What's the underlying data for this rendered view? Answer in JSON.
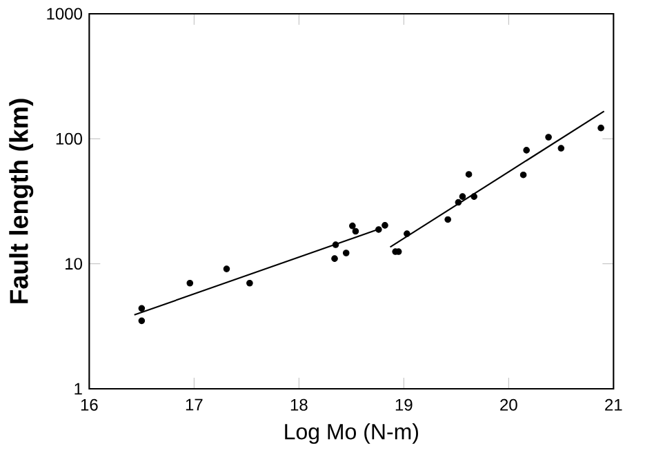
{
  "chart_data": {
    "type": "scatter",
    "xlabel": "Log Mo (N-m)",
    "ylabel": "Fault length (km)",
    "log": "y",
    "xlim": [
      16,
      21
    ],
    "ylim": [
      1,
      1000
    ],
    "xticks": [
      16,
      17,
      18,
      19,
      20,
      21
    ],
    "yticks": [
      1,
      10,
      100,
      1000
    ],
    "series": [
      {
        "marker": "circle",
        "color": "#000000",
        "x": [
          16.5,
          16.5,
          16.96,
          17.31,
          17.53,
          18.34,
          18.35,
          18.45,
          18.51,
          18.54,
          18.76,
          18.82,
          18.92,
          18.95,
          19.03,
          19.42,
          19.52,
          19.56,
          19.62,
          19.67,
          20.14,
          20.17,
          20.38,
          20.5,
          20.88
        ],
        "values": [
          4.4,
          3.5,
          7.0,
          9.1,
          7.0,
          11.0,
          14.2,
          12.2,
          20.1,
          18.2,
          18.8,
          20.3,
          12.5,
          12.5,
          17.4,
          22.6,
          31,
          34.5,
          51.9,
          34.5,
          51.4,
          81,
          103,
          84,
          122
        ]
      },
      {
        "type": "line",
        "marker": "none",
        "color": "#000000",
        "x": [
          16.43,
          18.75
        ],
        "values": [
          3.9,
          18.8
        ]
      },
      {
        "type": "line",
        "marker": "none",
        "color": "#000000",
        "x": [
          18.87,
          20.91
        ],
        "values": [
          13.6,
          166
        ]
      }
    ]
  }
}
